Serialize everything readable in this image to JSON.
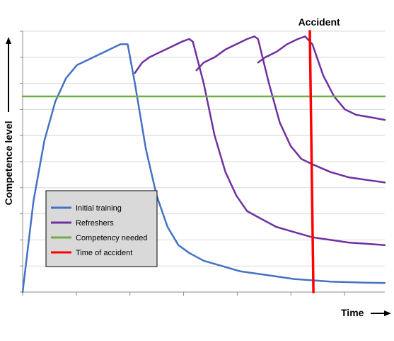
{
  "chart_data": {
    "type": "line",
    "xlabel": "Time",
    "ylabel": "Competence level",
    "xlim": [
      0,
      100
    ],
    "ylim": [
      0,
      100
    ],
    "grid": {
      "horizontal": true,
      "vertical": false
    },
    "legend_placement": "bottom-left",
    "annotations": [
      {
        "text": "Accident",
        "x": 80.3,
        "y": 103
      }
    ],
    "series": [
      {
        "name": "Initial training",
        "color": "#4472c4",
        "points": [
          [
            0,
            0
          ],
          [
            3,
            35
          ],
          [
            6,
            58
          ],
          [
            9,
            73
          ],
          [
            12,
            82
          ],
          [
            15,
            87
          ],
          [
            18,
            89
          ],
          [
            21,
            91
          ],
          [
            24,
            93
          ],
          [
            27,
            95
          ],
          [
            29,
            95
          ],
          [
            31,
            80
          ],
          [
            34,
            55
          ],
          [
            37,
            37
          ],
          [
            40,
            25
          ],
          [
            43,
            18
          ],
          [
            46,
            15
          ],
          [
            50,
            12
          ],
          [
            55,
            10
          ],
          [
            60,
            8
          ],
          [
            65,
            7
          ],
          [
            70,
            6
          ],
          [
            75,
            5
          ],
          [
            80,
            4.5
          ],
          [
            85,
            4
          ],
          [
            90,
            3.8
          ],
          [
            95,
            3.6
          ],
          [
            100,
            3.5
          ]
        ]
      },
      {
        "name": "Refreshers",
        "color": "#7030a0",
        "segments": [
          [
            [
              31,
              84
            ],
            [
              33,
              88
            ],
            [
              35,
              90
            ],
            [
              38,
              92
            ],
            [
              41,
              94
            ],
            [
              44,
              96
            ],
            [
              46,
              97
            ],
            [
              47,
              96
            ],
            [
              50,
              80
            ],
            [
              53,
              60
            ],
            [
              56,
              46
            ],
            [
              59,
              37
            ],
            [
              62,
              31
            ],
            [
              66,
              28
            ],
            [
              70,
              25
            ],
            [
              75,
              23
            ],
            [
              80,
              21
            ],
            [
              85,
              20
            ],
            [
              90,
              19
            ],
            [
              95,
              18.5
            ],
            [
              100,
              18
            ]
          ],
          [
            [
              48,
              85
            ],
            [
              50,
              88
            ],
            [
              53,
              90
            ],
            [
              56,
              93
            ],
            [
              59,
              95
            ],
            [
              62,
              97
            ],
            [
              64,
              98
            ],
            [
              65,
              97
            ],
            [
              68,
              80
            ],
            [
              71,
              65
            ],
            [
              74,
              56
            ],
            [
              77,
              51
            ],
            [
              80,
              49
            ],
            [
              85,
              46
            ],
            [
              90,
              44
            ],
            [
              95,
              43
            ],
            [
              100,
              42
            ]
          ],
          [
            [
              65,
              88
            ],
            [
              67,
              90
            ],
            [
              70,
              92
            ],
            [
              73,
              95
            ],
            [
              76,
              97
            ],
            [
              78,
              98
            ],
            [
              80,
              95
            ],
            [
              83,
              83
            ],
            [
              86,
              75
            ],
            [
              89,
              70
            ],
            [
              92,
              68
            ],
            [
              96,
              67
            ],
            [
              100,
              66
            ]
          ]
        ]
      },
      {
        "name": "Competency needed",
        "color": "#70ad47",
        "points": [
          [
            0,
            75
          ],
          [
            100,
            75
          ]
        ]
      },
      {
        "name": "Time of accident",
        "color": "#ff0000",
        "points": [
          [
            79.3,
            100
          ],
          [
            80.3,
            0
          ]
        ]
      }
    ]
  }
}
